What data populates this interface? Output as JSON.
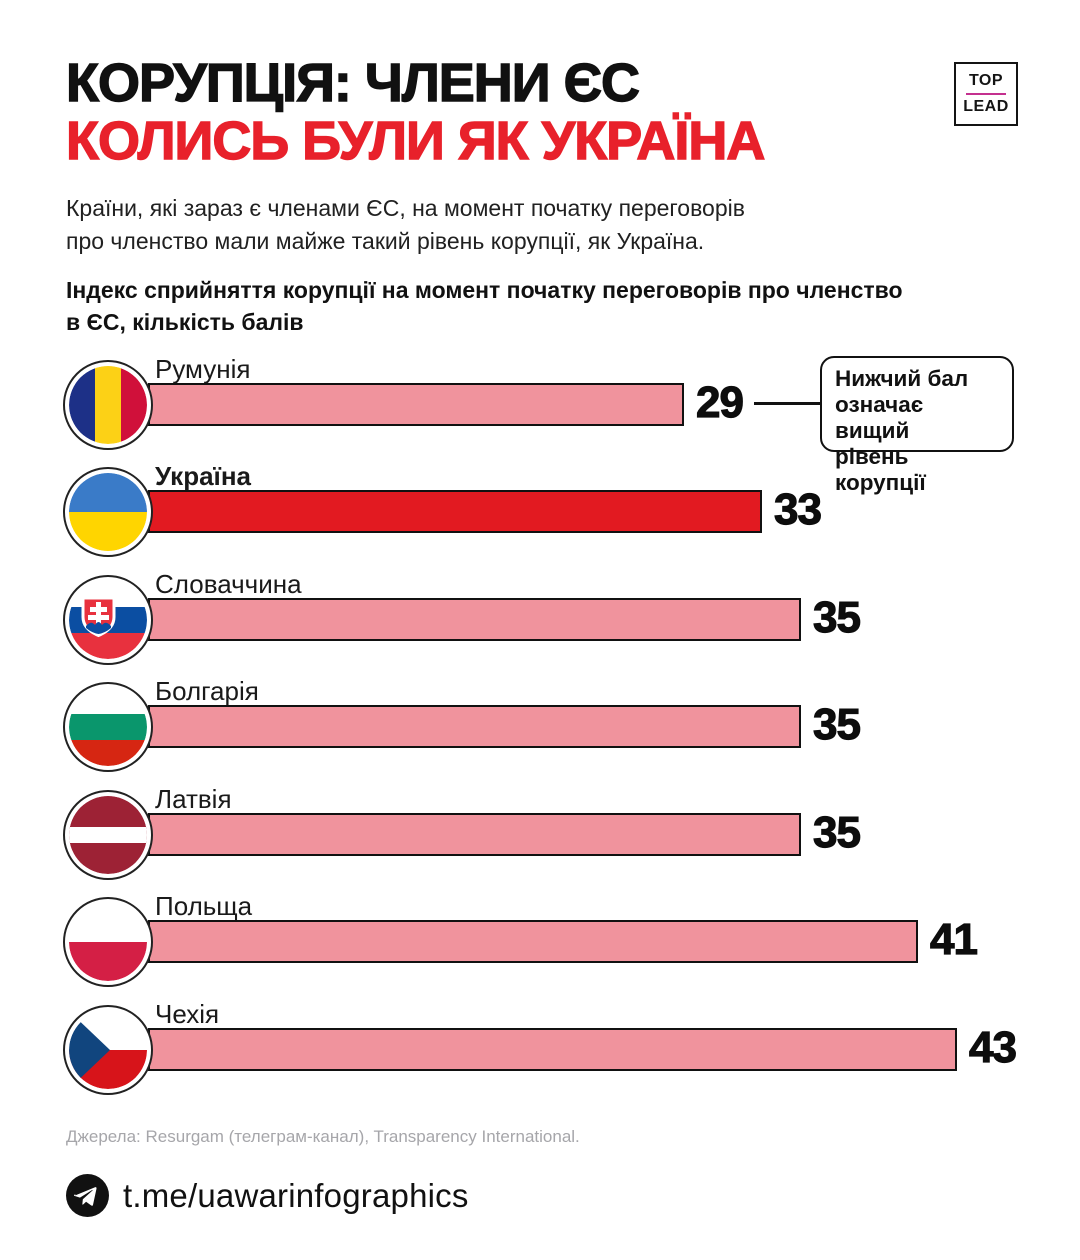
{
  "header": {
    "title_line1": "КОРУПЦІЯ: ЧЛЕНИ ЄС",
    "title_line2": "КОЛИСЬ БУЛИ ЯК УКРАЇНА",
    "logo": {
      "top": "TOP",
      "bottom": "LEAD"
    },
    "subtitle_line1": "Країни, які зараз є членами ЄС, на момент початку переговорів",
    "subtitle_line2": "про членство мали майже такий рівень корупції, як Україна."
  },
  "chart_heading": {
    "line1": "Індекс сприйняття корупції на момент початку переговорів про членство",
    "line2": "в ЄС, кількість балів"
  },
  "chart_data": {
    "type": "bar",
    "orientation": "horizontal",
    "title": "Індекс сприйняття корупції на момент початку переговорів про членство в ЄС, кількість балів",
    "xlim": [
      0,
      45
    ],
    "grid": false,
    "rows": [
      {
        "label": "Румунія",
        "flag_icon": "romania-flag-icon",
        "value": 29,
        "value_label": "29",
        "highlight": false
      },
      {
        "label": "Україна",
        "flag_icon": "ukraine-flag-icon",
        "value": 33,
        "value_label": "33",
        "highlight": true
      },
      {
        "label": "Словаччина",
        "flag_icon": "slovakia-flag-icon",
        "value": 35,
        "value_label": "35",
        "highlight": false
      },
      {
        "label": "Болгарія",
        "flag_icon": "bulgaria-flag-icon",
        "value": 35,
        "value_label": "35",
        "highlight": false
      },
      {
        "label": "Латвія",
        "flag_icon": "latvia-flag-icon",
        "value": 35,
        "value_label": "35",
        "highlight": false
      },
      {
        "label": "Польща",
        "flag_icon": "poland-flag-icon",
        "value": 41,
        "value_label": "41",
        "highlight": false
      },
      {
        "label": "Чехія",
        "flag_icon": "czechia-flag-icon",
        "value": 43,
        "value_label": "43",
        "highlight": false
      }
    ],
    "annotation": {
      "line1": "Нижчий бал",
      "line2": "означає вищий",
      "line3": "рівень корупції"
    }
  },
  "colors": {
    "bar_normal": "#f0939d",
    "bar_highlight": "#e21a21",
    "title_accent": "#e8212b",
    "logo_divider": "#c4308f",
    "text": "#111111",
    "source_text": "#a6a6aa"
  },
  "footer": {
    "source": "Джерела: Resurgam (телеграм-канал), Transparency International.",
    "channel": "t.me/uawarinfographics"
  }
}
